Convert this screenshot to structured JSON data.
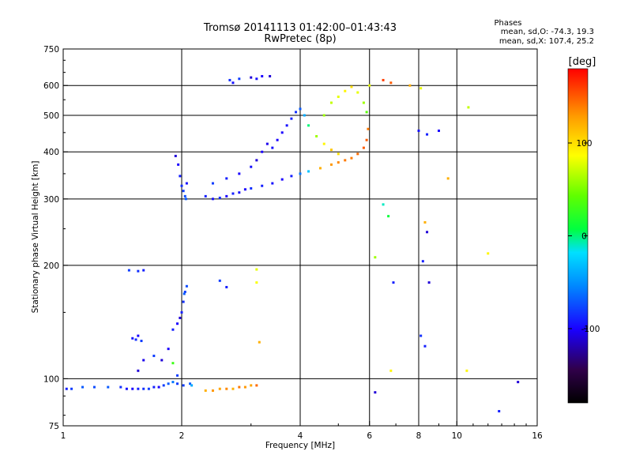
{
  "chart_data": {
    "type": "scatter",
    "title": "Tromsø 20141113 01:42:00–01:43:43",
    "subtitle": "RwPretec (8p)",
    "phases": {
      "heading": "Phases",
      "line_o": "mean, sd,O: -74.3, 19.3",
      "line_x": "mean, sd,X: 107.4, 25.2"
    },
    "xlabel": "Frequency [MHz]",
    "ylabel": "Stationary phase Virtual Height [km]",
    "x_scale": "log",
    "y_scale": "log",
    "xlim": [
      1,
      16
    ],
    "ylim": [
      75,
      750
    ],
    "x_ticks": [
      1,
      2,
      4,
      6,
      8,
      10,
      16
    ],
    "x_tick_labels": [
      "1",
      "2",
      "4",
      "6",
      "8",
      "10",
      "16"
    ],
    "y_ticks": [
      75,
      100,
      200,
      300,
      400,
      500,
      600,
      750
    ],
    "y_tick_labels": [
      "75",
      "100",
      "200",
      "300",
      "400",
      "500",
      "600",
      "750"
    ],
    "x_gridlines": [
      2,
      4,
      6,
      8,
      10
    ],
    "y_gridlines": [
      100,
      200,
      300,
      400,
      500,
      600
    ],
    "grid": true,
    "colorbar": {
      "label": "[deg]",
      "range": [
        -180,
        180
      ],
      "ticks": [
        100,
        0,
        -100
      ],
      "tick_labels": [
        "100",
        "0",
        "-100"
      ]
    },
    "points": [
      [
        1.02,
        94,
        -90
      ],
      [
        1.05,
        94,
        -80
      ],
      [
        1.12,
        95,
        -70
      ],
      [
        1.2,
        95,
        -75
      ],
      [
        1.3,
        95,
        -70
      ],
      [
        1.4,
        95,
        -85
      ],
      [
        1.45,
        94,
        -95
      ],
      [
        1.5,
        94,
        -100
      ],
      [
        1.55,
        94,
        -90
      ],
      [
        1.6,
        94,
        -85
      ],
      [
        1.65,
        94,
        -80
      ],
      [
        1.7,
        95,
        -90
      ],
      [
        1.75,
        95,
        -100
      ],
      [
        1.8,
        96,
        -80
      ],
      [
        1.85,
        97,
        -70
      ],
      [
        1.9,
        98,
        -60
      ],
      [
        1.95,
        97,
        -80
      ],
      [
        2.02,
        96,
        -80
      ],
      [
        2.1,
        97,
        -70
      ],
      [
        2.12,
        96,
        -40
      ],
      [
        1.5,
        128,
        -95
      ],
      [
        1.53,
        127,
        -85
      ],
      [
        1.58,
        126,
        -80
      ],
      [
        1.55,
        130,
        -100
      ],
      [
        1.47,
        194,
        -80
      ],
      [
        1.55,
        193,
        -85
      ],
      [
        1.6,
        194,
        -90
      ],
      [
        1.55,
        105,
        -110
      ],
      [
        1.6,
        112,
        -105
      ],
      [
        1.7,
        115,
        -80
      ],
      [
        1.78,
        112,
        -110
      ],
      [
        1.85,
        120,
        -100
      ],
      [
        1.9,
        135,
        -90
      ],
      [
        1.95,
        140,
        -100
      ],
      [
        1.98,
        145,
        -110
      ],
      [
        2.0,
        150,
        -90
      ],
      [
        2.02,
        160,
        -85
      ],
      [
        2.04,
        170,
        -80
      ],
      [
        2.06,
        176,
        -75
      ],
      [
        2.03,
        168,
        -70
      ],
      [
        1.9,
        110,
        30
      ],
      [
        1.95,
        102,
        -80
      ],
      [
        1.93,
        390,
        -110
      ],
      [
        1.96,
        370,
        -100
      ],
      [
        1.98,
        345,
        -90
      ],
      [
        2.0,
        325,
        -85
      ],
      [
        2.02,
        315,
        -80
      ],
      [
        2.04,
        305,
        -75
      ],
      [
        2.06,
        330,
        -95
      ],
      [
        2.05,
        300,
        -70
      ],
      [
        2.3,
        93,
        120
      ],
      [
        2.4,
        93,
        130
      ],
      [
        2.5,
        94,
        125
      ],
      [
        2.6,
        94,
        135
      ],
      [
        2.7,
        94,
        120
      ],
      [
        2.8,
        95,
        140
      ],
      [
        2.9,
        95,
        130
      ],
      [
        3.0,
        96,
        125
      ],
      [
        3.1,
        96,
        145
      ],
      [
        2.6,
        175,
        -90
      ],
      [
        2.5,
        182,
        -80
      ],
      [
        3.1,
        195,
        80
      ],
      [
        3.1,
        180,
        85
      ],
      [
        3.15,
        125,
        120
      ],
      [
        2.65,
        620,
        -85
      ],
      [
        2.7,
        610,
        -95
      ],
      [
        2.8,
        625,
        -80
      ],
      [
        3.0,
        630,
        -110
      ],
      [
        3.1,
        625,
        -95
      ],
      [
        3.2,
        635,
        -100
      ],
      [
        3.35,
        635,
        -110
      ],
      [
        2.3,
        305,
        -90
      ],
      [
        2.4,
        300,
        -95
      ],
      [
        2.5,
        302,
        -85
      ],
      [
        2.6,
        305,
        -100
      ],
      [
        2.7,
        310,
        -90
      ],
      [
        2.8,
        312,
        -95
      ],
      [
        2.9,
        318,
        -100
      ],
      [
        3.0,
        320,
        -85
      ],
      [
        3.2,
        325,
        -90
      ],
      [
        3.4,
        330,
        -95
      ],
      [
        3.6,
        338,
        -100
      ],
      [
        3.8,
        345,
        -90
      ],
      [
        4.0,
        350,
        -60
      ],
      [
        4.2,
        355,
        -30
      ],
      [
        4.5,
        362,
        120
      ],
      [
        4.8,
        370,
        130
      ],
      [
        5.0,
        375,
        135
      ],
      [
        5.2,
        380,
        140
      ],
      [
        5.4,
        385,
        140
      ],
      [
        5.6,
        395,
        145
      ],
      [
        5.8,
        410,
        150
      ],
      [
        5.9,
        430,
        150
      ],
      [
        5.95,
        460,
        140
      ],
      [
        2.4,
        330,
        -80
      ],
      [
        2.6,
        340,
        -90
      ],
      [
        2.8,
        350,
        -100
      ],
      [
        3.0,
        365,
        -95
      ],
      [
        3.1,
        380,
        -110
      ],
      [
        3.2,
        400,
        -100
      ],
      [
        3.3,
        420,
        -105
      ],
      [
        3.4,
        410,
        -95
      ],
      [
        3.5,
        430,
        -100
      ],
      [
        3.6,
        450,
        -100
      ],
      [
        3.7,
        470,
        -95
      ],
      [
        3.8,
        490,
        -90
      ],
      [
        3.9,
        510,
        -85
      ],
      [
        4.0,
        520,
        -70
      ],
      [
        4.1,
        500,
        -40
      ],
      [
        4.2,
        470,
        0
      ],
      [
        4.4,
        440,
        60
      ],
      [
        4.6,
        420,
        90
      ],
      [
        4.8,
        405,
        110
      ],
      [
        5.0,
        395,
        100
      ],
      [
        4.6,
        500,
        60
      ],
      [
        4.8,
        540,
        70
      ],
      [
        5.0,
        560,
        80
      ],
      [
        5.2,
        580,
        90
      ],
      [
        5.4,
        595,
        100
      ],
      [
        5.6,
        575,
        80
      ],
      [
        5.8,
        540,
        60
      ],
      [
        5.9,
        510,
        40
      ],
      [
        6.0,
        600,
        80
      ],
      [
        6.5,
        620,
        160
      ],
      [
        6.8,
        610,
        150
      ],
      [
        7.6,
        600,
        120
      ],
      [
        8.1,
        590,
        80
      ],
      [
        6.5,
        290,
        -10
      ],
      [
        6.7,
        270,
        10
      ],
      [
        6.2,
        210,
        60
      ],
      [
        6.9,
        180,
        -90
      ],
      [
        8.3,
        260,
        120
      ],
      [
        8.4,
        245,
        -110
      ],
      [
        8.2,
        205,
        -90
      ],
      [
        8.5,
        180,
        -110
      ],
      [
        8.1,
        130,
        -85
      ],
      [
        8.3,
        122,
        -90
      ],
      [
        6.8,
        105,
        90
      ],
      [
        6.2,
        92,
        -110
      ],
      [
        8.0,
        455,
        -95
      ],
      [
        8.4,
        445,
        -90
      ],
      [
        9.0,
        455,
        -100
      ],
      [
        9.5,
        340,
        120
      ],
      [
        10.7,
        525,
        70
      ],
      [
        10.6,
        105,
        90
      ],
      [
        12.0,
        215,
        90
      ],
      [
        12.8,
        82,
        -90
      ],
      [
        14.3,
        98,
        -110
      ]
    ]
  }
}
